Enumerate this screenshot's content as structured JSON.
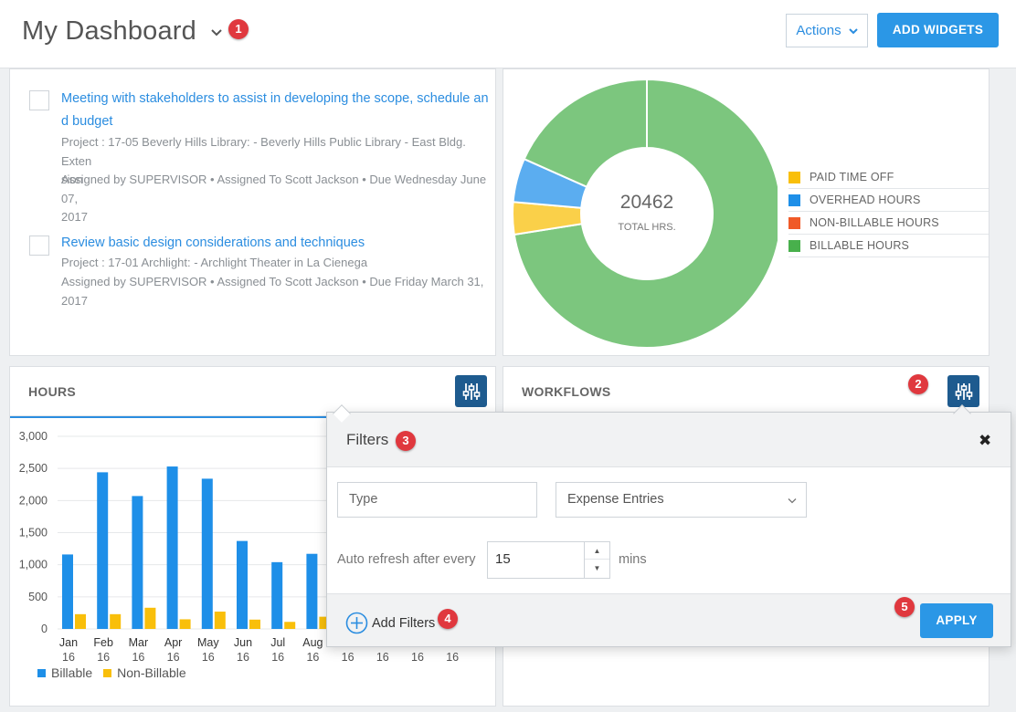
{
  "header": {
    "title": "My Dashboard",
    "actions_label": "Actions",
    "add_widgets_label": "ADD WIDGETS"
  },
  "badges": [
    "1",
    "2",
    "3",
    "4",
    "5"
  ],
  "tasks": [
    {
      "title_lines": [
        "Meeting with stakeholders to assist in developing the scope, schedule an",
        "d budget"
      ],
      "project_lines": [
        "Project : 17-05 Beverly Hills Library: - Beverly Hills Public Library - East Bldg. Exten",
        "sion"
      ],
      "assign_lines": [
        "Assigned by SUPERVISOR • Assigned To Scott Jackson • Due Wednesday June 07,",
        "2017"
      ]
    },
    {
      "title_lines": [
        "Review basic design considerations and techniques"
      ],
      "project_lines": [
        "Project : 17-01 Archlight: - Archlight Theater in La Cienega"
      ],
      "assign_lines": [
        "Assigned by SUPERVISOR • Assigned To Scott Jackson • Due Friday March 31,",
        "2017"
      ]
    }
  ],
  "time_summary": {
    "total": "20462",
    "total_label": "TOTAL HRS.",
    "legend": [
      {
        "label": "PAID TIME OFF",
        "color": "#f9bf0a"
      },
      {
        "label": "OVERHEAD HOURS",
        "color": "#1e8fe8"
      },
      {
        "label": "NON-BILLABLE HOURS",
        "color": "#f05a28"
      },
      {
        "label": "BILLABLE HOURS",
        "color": "#48b04c"
      }
    ],
    "ring_colors": {
      "billable": "#7cc67e",
      "overhead": "#5badf0",
      "paid_time_off": "#fad049"
    }
  },
  "hours_widget": {
    "title": "HOURS",
    "filter_icon": "sliders-icon"
  },
  "workflows_widget": {
    "title": "WORKFLOWS",
    "filter_icon": "sliders-icon"
  },
  "chart_data": {
    "type": "bar",
    "categories": [
      "Jan 16",
      "Feb 16",
      "Mar 16",
      "Apr 16",
      "May 16",
      "Jun 16",
      "Jul 16",
      "Aug 16",
      "Sep 16",
      "Oct 16",
      "Nov 16",
      "Dec 16"
    ],
    "category_month": [
      "Jan",
      "Feb",
      "Mar",
      "Apr",
      "May",
      "Jun",
      "Jul",
      "Aug",
      "",
      "",
      "",
      ""
    ],
    "category_year": [
      "16",
      "16",
      "16",
      "16",
      "16",
      "16",
      "16",
      "16",
      "16",
      "16",
      "16",
      "16"
    ],
    "series": [
      {
        "name": "Billable",
        "color": "#1e8fe8",
        "values": [
          1160,
          2440,
          2070,
          2530,
          2340,
          1370,
          1040,
          1170,
          0,
          0,
          0,
          0
        ]
      },
      {
        "name": "Non-Billable",
        "color": "#f9bf0a",
        "values": [
          230,
          230,
          330,
          150,
          270,
          145,
          110,
          190,
          0,
          0,
          0,
          0
        ]
      }
    ],
    "ylim": [
      0,
      3000
    ],
    "yticks": [
      "0",
      "500",
      "1,000",
      "1,500",
      "2,000",
      "2,500",
      "3,000"
    ],
    "legend_position": "bottom-left"
  },
  "filters_popover": {
    "title": "Filters",
    "type_placeholder": "Type",
    "entry_type_value": "Expense Entries",
    "auto_refresh_label": "Auto refresh after every",
    "auto_refresh_value": "15",
    "auto_refresh_unit": "mins",
    "add_filters_label": "Add Filters",
    "apply_label": "APPLY"
  }
}
